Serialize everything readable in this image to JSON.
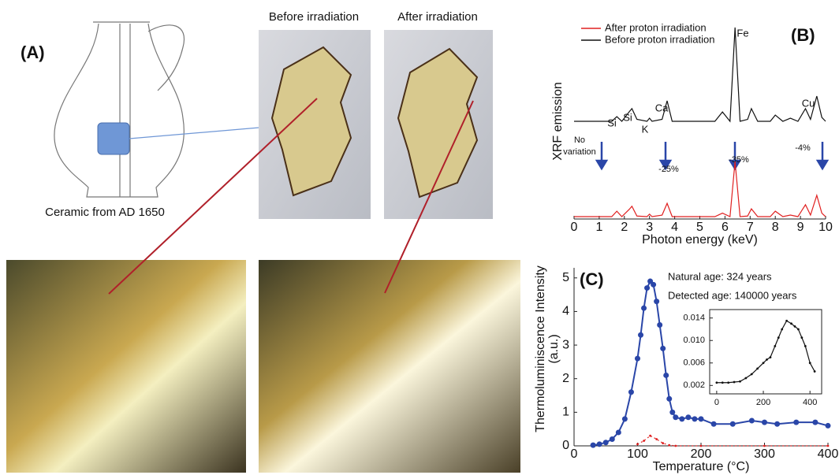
{
  "panel_a": {
    "label": "(A)",
    "caption": "Ceramic from AD 1650",
    "before": "Before irradiation",
    "after": "After irradiation"
  },
  "chart_data": [
    {
      "type": "line",
      "label": "(B)",
      "xlabel": "Photon energy (keV)",
      "ylabel": "XRF emission",
      "x": [
        0,
        0.8,
        1.5,
        1.7,
        1.9,
        2.2,
        2.3,
        2.5,
        2.9,
        3.0,
        3.1,
        3.5,
        3.7,
        3.9,
        5.6,
        5.9,
        6.2,
        6.4,
        6.6,
        6.9,
        7.05,
        7.3,
        7.8,
        8.0,
        8.3,
        8.6,
        8.9,
        9.2,
        9.4,
        9.65,
        9.85,
        10.0
      ],
      "series": [
        {
          "name": "After proton irradiation",
          "color": "#e02020",
          "values": [
            1.2,
            1.2,
            1.2,
            4,
            1.2,
            5,
            6.5,
            1.5,
            1.2,
            2.5,
            1.2,
            2,
            8,
            1.2,
            1.2,
            3,
            1.2,
            29.4,
            1.2,
            1.5,
            5.2,
            1.2,
            1.2,
            4,
            1.2,
            2,
            1.2,
            7.3,
            2,
            12.1,
            3,
            1.2
          ]
        },
        {
          "name": "Before proton irradiation",
          "color": "#111111",
          "values": [
            50,
            50,
            50,
            52.4,
            50,
            55,
            56.5,
            51,
            50,
            51.6,
            50,
            51,
            60.5,
            50,
            50,
            54.8,
            50,
            98,
            50,
            51,
            56.5,
            50,
            50,
            53.2,
            50,
            51.6,
            50,
            56.5,
            51,
            62.9,
            52,
            50
          ]
        }
      ],
      "annotations": [
        "Si",
        "Si",
        "K",
        "Ca",
        "Fe",
        "Cu",
        "No",
        "variation",
        "-25%",
        "-35%",
        "-4%"
      ],
      "xlim": [
        0,
        10
      ],
      "xticks": [
        0,
        1,
        2,
        3,
        4,
        5,
        6,
        7,
        8,
        9,
        10
      ],
      "ylim": [
        0,
        100
      ]
    },
    {
      "type": "line",
      "label": "(C)",
      "xlabel": "Temperature (°C)",
      "ylabel": [
        "Thermoluminiscence Intensity",
        "(a.u.)"
      ],
      "annotations": [
        "Natural age: 324 years",
        "Detected age: 140000 years"
      ],
      "series": [
        {
          "color": "#2a46a8",
          "marker": "circle",
          "x": [
            30,
            40,
            50,
            60,
            70,
            80,
            90,
            100,
            105,
            110,
            115,
            120,
            125,
            130,
            135,
            140,
            145,
            150,
            155,
            160,
            170,
            180,
            190,
            200,
            220,
            250,
            280,
            300,
            320,
            350,
            380,
            400
          ],
          "values": [
            0.02,
            0.05,
            0.1,
            0.2,
            0.4,
            0.8,
            1.6,
            2.6,
            3.3,
            4.1,
            4.7,
            4.9,
            4.8,
            4.3,
            3.6,
            2.9,
            2.1,
            1.4,
            1.0,
            0.85,
            0.8,
            0.85,
            0.8,
            0.8,
            0.65,
            0.65,
            0.75,
            0.7,
            0.65,
            0.7,
            0.7,
            0.6
          ]
        },
        {
          "color": "#e02020",
          "marker": "dot",
          "dashed": true,
          "x": [
            100,
            110,
            120,
            130,
            140,
            150,
            160,
            200,
            300,
            400
          ],
          "values": [
            0.05,
            0.15,
            0.3,
            0.2,
            0.08,
            0.02,
            0,
            0,
            0,
            0
          ]
        }
      ],
      "xlim": [
        0,
        400
      ],
      "xticks": [
        0,
        100,
        200,
        300,
        400
      ],
      "ylim": [
        0,
        5.3
      ],
      "yticks": [
        0,
        1,
        2,
        3,
        4,
        5
      ]
    },
    {
      "type": "line",
      "inset": true,
      "series": [
        {
          "color": "#111111",
          "marker": "dot",
          "x": [
            0,
            25,
            50,
            75,
            100,
            125,
            150,
            175,
            200,
            215,
            230,
            250,
            265,
            280,
            300,
            320,
            335,
            350,
            365,
            380,
            400,
            420
          ],
          "values": [
            0.0025,
            0.0025,
            0.0025,
            0.0026,
            0.0027,
            0.0033,
            0.004,
            0.005,
            0.006,
            0.0066,
            0.007,
            0.009,
            0.0105,
            0.012,
            0.0135,
            0.013,
            0.0125,
            0.012,
            0.0105,
            0.009,
            0.006,
            0.0045
          ]
        }
      ],
      "xlim": [
        -30,
        450
      ],
      "xticks": [
        0,
        200,
        400
      ],
      "ylim": [
        0.0005,
        0.0155
      ],
      "yticks": [
        0.002,
        0.006,
        {
          "value": 0.01,
          "label": "0.010"
        },
        0.014
      ]
    }
  ]
}
